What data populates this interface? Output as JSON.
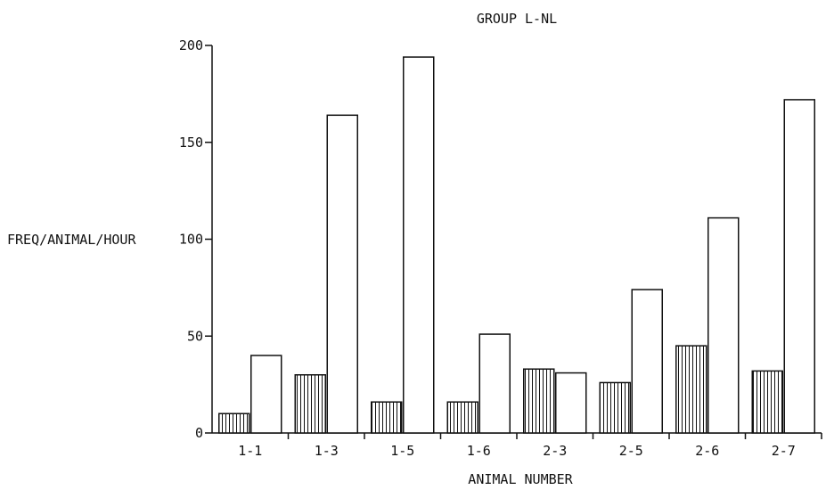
{
  "chart_data": {
    "type": "bar",
    "title": "GROUP L-NL",
    "xlabel": "ANIMAL NUMBER",
    "ylabel": "FREQ/ANIMAL/HOUR",
    "ylim": [
      0,
      200
    ],
    "yticks": [
      0,
      50,
      100,
      150,
      200
    ],
    "categories": [
      "1-1",
      "1-3",
      "1-5",
      "1-6",
      "2-3",
      "2-5",
      "2-6",
      "2-7"
    ],
    "series": [
      {
        "values": [
          10,
          30,
          16,
          16,
          33,
          26,
          45,
          32
        ],
        "pattern": "vertical-hatch",
        "color": "#111111"
      },
      {
        "values": [
          40,
          164,
          194,
          51,
          31,
          74,
          111,
          172
        ],
        "pattern": "open",
        "color": "#111111"
      }
    ],
    "grid": false,
    "legend": "none"
  }
}
